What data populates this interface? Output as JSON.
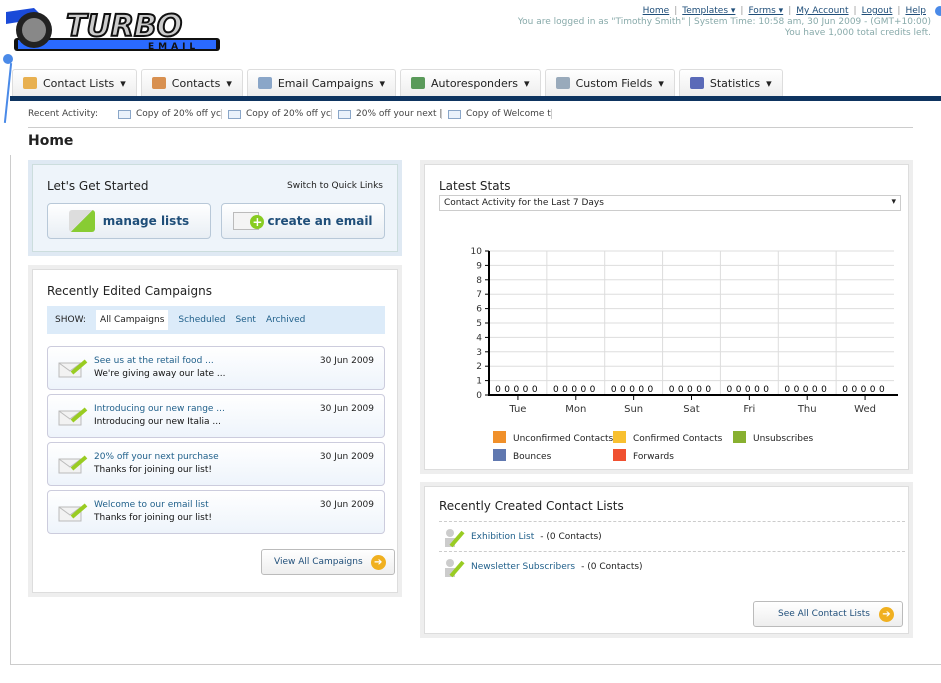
{
  "logo": {
    "text": "TURBO",
    "sub": "EMAIL"
  },
  "top": {
    "links": [
      "Home",
      "Templates ▾",
      "Forms ▾",
      "My Account",
      "Logout",
      "Help"
    ],
    "login": "You are logged in as \"Timothy Smith\" | System Time: 10:58 am, 30 Jun 2009 - (GMT+10:00)",
    "credits": "You have 1,000 total credits left."
  },
  "nav": [
    {
      "label": "Contact Lists",
      "icon": "folder-contacts-icon",
      "color": "#e8b050"
    },
    {
      "label": "Contacts",
      "icon": "contacts-icon",
      "color": "#d89050"
    },
    {
      "label": "Email Campaigns",
      "icon": "envelope-icon",
      "color": "#8aa6c8"
    },
    {
      "label": "Autoresponders",
      "icon": "autoresponder-icon",
      "color": "#5a9a5a"
    },
    {
      "label": "Custom Fields",
      "icon": "custom-fields-icon",
      "color": "#9ab"
    },
    {
      "label": "Statistics",
      "icon": "bar-chart-icon",
      "color": "#5a6ab8"
    }
  ],
  "recent": {
    "label": "Recent Activity:",
    "items": [
      "Copy of 20% off yc",
      "Copy of 20% off yc",
      "20% off your next |",
      "Copy of Welcome tc"
    ]
  },
  "page_title": "Home",
  "started": {
    "title": "Let's Get Started",
    "switch": "Switch to Quick Links",
    "manage": "manage lists",
    "create": "create an email"
  },
  "campaigns": {
    "title": "Recently Edited Campaigns",
    "show": "SHOW:",
    "filters": [
      "All Campaigns",
      "Scheduled",
      "Sent",
      "Archived"
    ],
    "items": [
      {
        "title": "See us at the retail food ...",
        "sub": "We're giving away our late ...",
        "date": "30 Jun 2009"
      },
      {
        "title": "Introducing our new range ...",
        "sub": "Introducing our new Italia ...",
        "date": "30 Jun 2009"
      },
      {
        "title": "20% off your next purchase",
        "sub": "Thanks for joining our list!",
        "date": "30 Jun 2009"
      },
      {
        "title": "Welcome to our email list",
        "sub": "Thanks for joining our list!",
        "date": "30 Jun 2009"
      }
    ],
    "view_all": "View All Campaigns"
  },
  "stats": {
    "title": "Latest Stats",
    "select": "Contact Activity for the Last 7 Days"
  },
  "chart_data": {
    "type": "bar",
    "categories": [
      "Tue",
      "Mon",
      "Sun",
      "Sat",
      "Fri",
      "Thu",
      "Wed"
    ],
    "series": [
      {
        "name": "Unconfirmed Contacts",
        "color": "#f0902a",
        "values": [
          0,
          0,
          0,
          0,
          0,
          0,
          0
        ]
      },
      {
        "name": "Confirmed Contacts",
        "color": "#f8c030",
        "values": [
          0,
          0,
          0,
          0,
          0,
          0,
          0
        ]
      },
      {
        "name": "Unsubscribes",
        "color": "#88b030",
        "values": [
          0,
          0,
          0,
          0,
          0,
          0,
          0
        ]
      },
      {
        "name": "Bounces",
        "color": "#6078b0",
        "values": [
          0,
          0,
          0,
          0,
          0,
          0,
          0
        ]
      },
      {
        "name": "Forwards",
        "color": "#f05030",
        "values": [
          0,
          0,
          0,
          0,
          0,
          0,
          0
        ]
      }
    ],
    "yticks": [
      "0",
      "1",
      "2",
      "3",
      "4",
      "5",
      "6",
      "7",
      "8",
      "9",
      "10"
    ],
    "ylim": [
      0,
      10
    ],
    "grid": true,
    "legend": "bottom"
  },
  "lists": {
    "title": "Recently Created Contact Lists",
    "items": [
      {
        "name": "Exhibition List",
        "count": " - (0 Contacts)"
      },
      {
        "name": "Newsletter Subscribers",
        "count": " - (0 Contacts)"
      }
    ],
    "see_all": "See All Contact Lists"
  }
}
